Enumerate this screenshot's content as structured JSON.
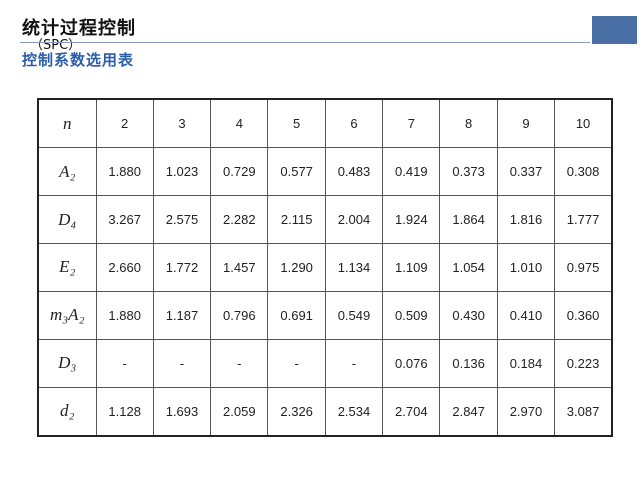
{
  "header": {
    "title": "统计过程控制",
    "title_suffix": "（SPC）",
    "subtitle": "控制系数选用表"
  },
  "colors": {
    "accent": "#4a6fa5",
    "subtitle": "#2a5ea8"
  },
  "table": {
    "corner": "n",
    "columns": [
      "2",
      "3",
      "4",
      "5",
      "6",
      "7",
      "8",
      "9",
      "10"
    ],
    "rows": [
      {
        "label": "A₂",
        "values": [
          "1.880",
          "1.023",
          "0.729",
          "0.577",
          "0.483",
          "0.419",
          "0.373",
          "0.337",
          "0.308"
        ]
      },
      {
        "label": "D₄",
        "values": [
          "3.267",
          "2.575",
          "2.282",
          "2.115",
          "2.004",
          "1.924",
          "1.864",
          "1.816",
          "1.777"
        ]
      },
      {
        "label": "E₂",
        "values": [
          "2.660",
          "1.772",
          "1.457",
          "1.290",
          "1.134",
          "1.109",
          "1.054",
          "1.010",
          "0.975"
        ]
      },
      {
        "label": "m₃A₂",
        "values": [
          "1.880",
          "1.187",
          "0.796",
          "0.691",
          "0.549",
          "0.509",
          "0.430",
          "0.410",
          "0.360"
        ]
      },
      {
        "label": "D₃",
        "values": [
          "-",
          "-",
          "-",
          "-",
          "-",
          "0.076",
          "0.136",
          "0.184",
          "0.223"
        ]
      },
      {
        "label": "d₂",
        "values": [
          "1.128",
          "1.693",
          "2.059",
          "2.326",
          "2.534",
          "2.704",
          "2.847",
          "2.970",
          "3.087"
        ]
      }
    ]
  }
}
